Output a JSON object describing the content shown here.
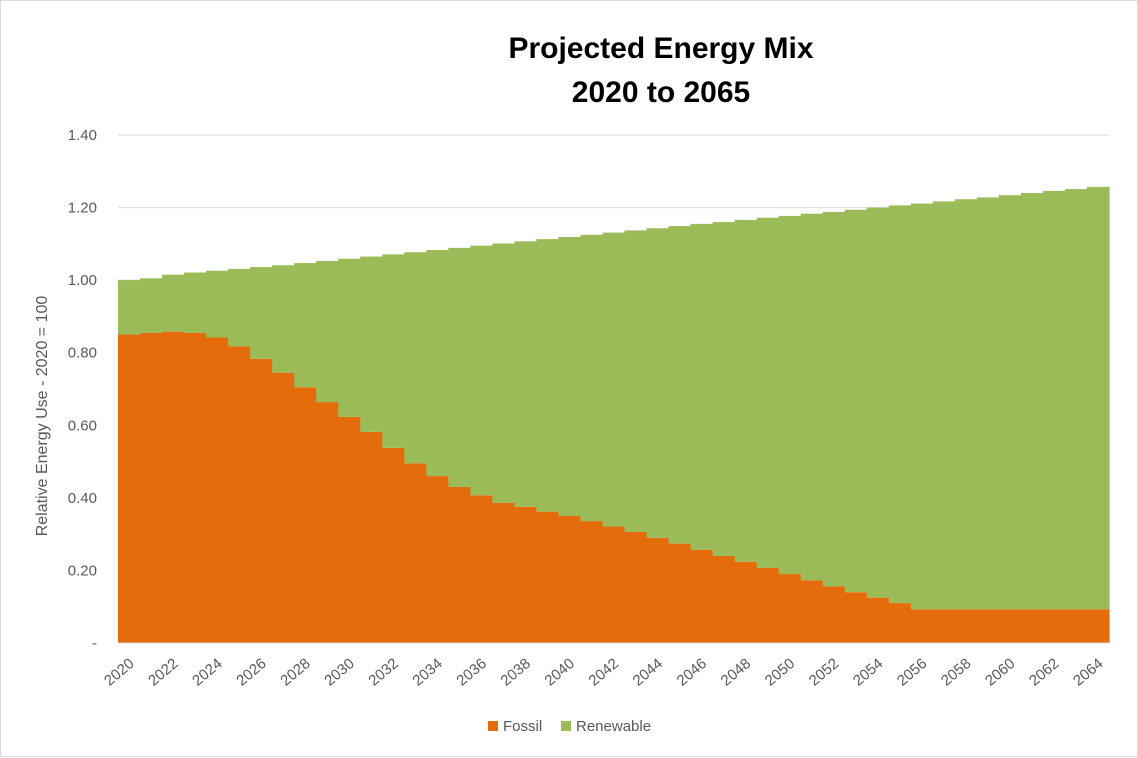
{
  "chart_data": {
    "type": "area",
    "title": [
      "Projected Energy Mix",
      "2020 to 2065"
    ],
    "xlabel": "",
    "ylabel": "Relative Energy Use - 2020 = 100",
    "ylim": [
      0,
      1.4
    ],
    "y_ticks": [
      0,
      0.2,
      0.4,
      0.6,
      0.8,
      1.0,
      1.2,
      1.4
    ],
    "y_tick_labels": [
      "-",
      "0.20",
      "0.40",
      "0.60",
      "0.80",
      "1.00",
      "1.20",
      "1.40"
    ],
    "x_tick_labels": [
      "2020",
      "2022",
      "2024",
      "2026",
      "2028",
      "2030",
      "2032",
      "2034",
      "2036",
      "2038",
      "2040",
      "2042",
      "2044",
      "2046",
      "2048",
      "2050",
      "2052",
      "2054",
      "2056",
      "2058",
      "2060",
      "2062",
      "2064"
    ],
    "categories": [
      2020,
      2021,
      2022,
      2023,
      2024,
      2025,
      2026,
      2027,
      2028,
      2029,
      2030,
      2031,
      2032,
      2033,
      2034,
      2035,
      2036,
      2037,
      2038,
      2039,
      2040,
      2041,
      2042,
      2043,
      2044,
      2045,
      2046,
      2047,
      2048,
      2049,
      2050,
      2051,
      2052,
      2053,
      2054,
      2055,
      2056,
      2057,
      2058,
      2059,
      2060,
      2061,
      2062,
      2063,
      2064
    ],
    "grid": "horizontal",
    "legend": "bottom",
    "stacked": true,
    "step": true,
    "series": [
      {
        "name": "Fossil",
        "color": "#e46c0a",
        "values": [
          0.85,
          0.855,
          0.858,
          0.855,
          0.842,
          0.818,
          0.783,
          0.745,
          0.705,
          0.664,
          0.623,
          0.582,
          0.538,
          0.495,
          0.46,
          0.43,
          0.407,
          0.386,
          0.375,
          0.362,
          0.35,
          0.336,
          0.321,
          0.306,
          0.29,
          0.274,
          0.257,
          0.24,
          0.224,
          0.207,
          0.19,
          0.173,
          0.156,
          0.14,
          0.125,
          0.11,
          0.093,
          0.093,
          0.093,
          0.093,
          0.093,
          0.093,
          0.093,
          0.093,
          0.093
        ]
      },
      {
        "name": "Renewable",
        "color": "#9bbb59",
        "values": [
          0.15,
          0.15,
          0.157,
          0.166,
          0.184,
          0.213,
          0.253,
          0.296,
          0.342,
          0.389,
          0.436,
          0.483,
          0.533,
          0.582,
          0.623,
          0.659,
          0.688,
          0.715,
          0.732,
          0.751,
          0.769,
          0.789,
          0.81,
          0.831,
          0.853,
          0.875,
          0.898,
          0.92,
          0.942,
          0.965,
          0.987,
          1.01,
          1.032,
          1.054,
          1.075,
          1.096,
          1.118,
          1.124,
          1.13,
          1.135,
          1.141,
          1.147,
          1.153,
          1.158,
          1.164
        ]
      }
    ]
  }
}
